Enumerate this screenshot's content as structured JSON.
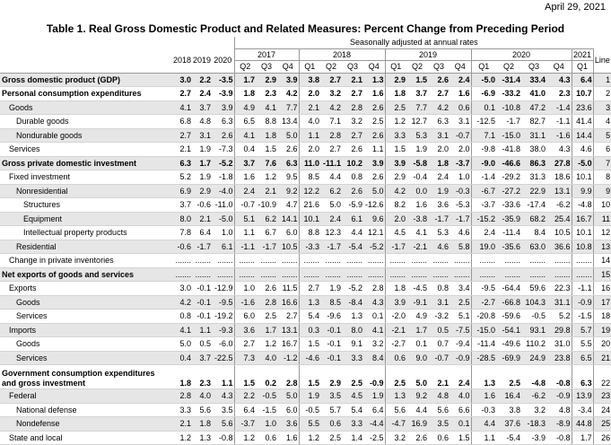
{
  "date": "April 29, 2021",
  "title": "Table 1. Real Gross Domestic Product and Related Measures: Percent Change from Preceding Period",
  "header": {
    "note": "Seasonally adjusted at annual rates",
    "annual_years": [
      "2018",
      "2019",
      "2020"
    ],
    "quarter_groups": [
      {
        "year": "2017",
        "quarters": [
          "Q2",
          "Q3",
          "Q4"
        ]
      },
      {
        "year": "2018",
        "quarters": [
          "Q1",
          "Q2",
          "Q3",
          "Q4"
        ]
      },
      {
        "year": "2019",
        "quarters": [
          "Q1",
          "Q2",
          "Q3",
          "Q4"
        ]
      },
      {
        "year": "2020",
        "quarters": [
          "Q1",
          "Q2",
          "Q3",
          "Q4"
        ]
      },
      {
        "year": "2021",
        "quarters": [
          "Q1"
        ]
      }
    ],
    "line": "Line"
  },
  "rows": [
    {
      "label": "Gross domestic product (GDP)",
      "values": [
        "3.0",
        "2.2",
        "-3.5",
        "1.7",
        "2.9",
        "3.9",
        "3.8",
        "2.7",
        "2.1",
        "1.3",
        "2.9",
        "1.5",
        "2.6",
        "2.4",
        "-5.0",
        "-31.4",
        "33.4",
        "4.3",
        "6.4"
      ],
      "line": 1
    },
    {
      "label": "Personal consumption expenditures",
      "values": [
        "2.7",
        "2.4",
        "-3.9",
        "1.8",
        "2.3",
        "4.2",
        "2.0",
        "3.2",
        "2.7",
        "1.6",
        "1.8",
        "3.7",
        "2.7",
        "1.6",
        "-6.9",
        "-33.2",
        "41.0",
        "2.3",
        "10.7"
      ],
      "line": 2
    },
    {
      "label": "Goods",
      "values": [
        "4.1",
        "3.7",
        "3.9",
        "4.9",
        "4.1",
        "7.7",
        "2.1",
        "4.2",
        "2.8",
        "2.6",
        "2.5",
        "7.7",
        "4.2",
        "0.6",
        "0.1",
        "-10.8",
        "47.2",
        "-1.4",
        "23.6"
      ],
      "line": 3
    },
    {
      "label": "Durable goods",
      "values": [
        "6.8",
        "4.8",
        "6.3",
        "6.5",
        "8.8",
        "13.4",
        "4.0",
        "7.1",
        "3.2",
        "2.5",
        "1.2",
        "12.7",
        "6.3",
        "3.1",
        "-12.5",
        "-1.7",
        "82.7",
        "-1.1",
        "41.4"
      ],
      "line": 4
    },
    {
      "label": "Nondurable goods",
      "values": [
        "2.7",
        "3.1",
        "2.6",
        "4.1",
        "1.8",
        "5.0",
        "1.1",
        "2.8",
        "2.7",
        "2.6",
        "3.3",
        "5.3",
        "3.1",
        "-0.7",
        "7.1",
        "-15.0",
        "31.1",
        "-1.6",
        "14.4"
      ],
      "line": 5
    },
    {
      "label": "Services",
      "values": [
        "2.1",
        "1.9",
        "-7.3",
        "0.4",
        "1.5",
        "2.6",
        "2.0",
        "2.7",
        "2.6",
        "1.1",
        "1.5",
        "1.9",
        "2.0",
        "2.0",
        "-9.8",
        "-41.8",
        "38.0",
        "4.3",
        "4.6"
      ],
      "line": 6
    },
    {
      "label": "Gross private domestic investment",
      "values": [
        "6.3",
        "1.7",
        "-5.2",
        "3.7",
        "7.6",
        "6.3",
        "11.0",
        "-11.1",
        "10.2",
        "3.9",
        "3.9",
        "-5.8",
        "1.8",
        "-3.7",
        "-9.0",
        "-46.6",
        "86.3",
        "27.8",
        "-5.0"
      ],
      "line": 7
    },
    {
      "label": "Fixed investment",
      "values": [
        "5.2",
        "1.9",
        "-1.8",
        "1.6",
        "1.2",
        "9.5",
        "8.5",
        "4.4",
        "0.8",
        "2.6",
        "2.9",
        "-0.4",
        "2.4",
        "1.0",
        "-1.4",
        "-29.2",
        "31.3",
        "18.6",
        "10.1"
      ],
      "line": 8
    },
    {
      "label": "Nonresidential",
      "values": [
        "6.9",
        "2.9",
        "-4.0",
        "2.4",
        "2.1",
        "9.2",
        "12.2",
        "6.2",
        "2.6",
        "5.0",
        "4.2",
        "0.0",
        "1.9",
        "-0.3",
        "-6.7",
        "-27.2",
        "22.9",
        "13.1",
        "9.9"
      ],
      "line": 9
    },
    {
      "label": "Structures",
      "values": [
        "3.7",
        "-0.6",
        "-11.0",
        "-0.7",
        "-10.9",
        "4.7",
        "21.6",
        "5.0",
        "-5.9",
        "-12.6",
        "8.2",
        "1.6",
        "3.6",
        "-5.3",
        "-3.7",
        "-33.6",
        "-17.4",
        "-6.2",
        "-4.8"
      ],
      "line": 10
    },
    {
      "label": "Equipment",
      "values": [
        "8.0",
        "2.1",
        "-5.0",
        "5.1",
        "6.2",
        "14.1",
        "10.1",
        "2.4",
        "6.1",
        "9.6",
        "2.0",
        "-3.8",
        "-1.7",
        "-1.7",
        "-15.2",
        "-35.9",
        "68.2",
        "25.4",
        "16.7"
      ],
      "line": 11
    },
    {
      "label": "Intellectual property products",
      "values": [
        "7.8",
        "6.4",
        "1.0",
        "1.1",
        "6.7",
        "6.0",
        "8.8",
        "12.3",
        "4.4",
        "12.1",
        "4.5",
        "4.1",
        "5.3",
        "4.6",
        "2.4",
        "-11.4",
        "8.4",
        "10.5",
        "10.1"
      ],
      "line": 12
    },
    {
      "label": "Residential",
      "values": [
        "-0.6",
        "-1.7",
        "6.1",
        "-1.1",
        "-1.7",
        "10.5",
        "-3.3",
        "-1.7",
        "-5.4",
        "-5.2",
        "-1.7",
        "-2.1",
        "4.6",
        "5.8",
        "19.0",
        "-35.6",
        "63.0",
        "36.6",
        "10.8"
      ],
      "line": 13
    },
    {
      "label": "Change in private inventories",
      "values": [
        ".......",
        ".......",
        ".......",
        ".......",
        ".......",
        ".......",
        ".......",
        ".......",
        ".......",
        ".......",
        ".......",
        ".......",
        ".......",
        ".......",
        ".......",
        ".......",
        ".......",
        ".......",
        "......."
      ],
      "line": 14
    },
    {
      "label": "Net exports of goods and services",
      "values": [
        ".......",
        ".......",
        ".......",
        ".......",
        ".......",
        ".......",
        ".......",
        ".......",
        ".......",
        ".......",
        ".......",
        ".......",
        ".......",
        ".......",
        ".......",
        ".......",
        ".......",
        ".......",
        "......."
      ],
      "line": 15
    },
    {
      "label": "Exports",
      "values": [
        "3.0",
        "-0.1",
        "-12.9",
        "1.0",
        "2.6",
        "11.5",
        "2.7",
        "1.9",
        "-5.2",
        "2.8",
        "1.8",
        "-4.5",
        "0.8",
        "3.4",
        "-9.5",
        "-64.4",
        "59.6",
        "22.3",
        "-1.1"
      ],
      "line": 16
    },
    {
      "label": "Goods",
      "values": [
        "4.2",
        "-0.1",
        "-9.5",
        "-1.6",
        "2.8",
        "16.6",
        "1.3",
        "8.5",
        "-8.4",
        "4.3",
        "3.9",
        "-9.1",
        "3.1",
        "2.5",
        "-2.7",
        "-66.8",
        "104.3",
        "31.1",
        "-0.9"
      ],
      "line": 17
    },
    {
      "label": "Services",
      "values": [
        "0.8",
        "-0.1",
        "-19.2",
        "6.0",
        "2.5",
        "2.7",
        "5.4",
        "-9.6",
        "1.3",
        "0.1",
        "-2.0",
        "4.9",
        "-3.2",
        "5.1",
        "-20.8",
        "-59.6",
        "-0.5",
        "5.2",
        "-1.5"
      ],
      "line": 18
    },
    {
      "label": "Imports",
      "values": [
        "4.1",
        "1.1",
        "-9.3",
        "3.6",
        "1.7",
        "13.1",
        "0.3",
        "-0.1",
        "8.0",
        "4.1",
        "-2.1",
        "1.7",
        "0.5",
        "-7.5",
        "-15.0",
        "-54.1",
        "93.1",
        "29.8",
        "5.7"
      ],
      "line": 19
    },
    {
      "label": "Goods",
      "values": [
        "5.0",
        "0.5",
        "-6.0",
        "2.7",
        "1.2",
        "16.7",
        "1.5",
        "-0.1",
        "9.1",
        "3.2",
        "-2.7",
        "0.1",
        "0.7",
        "-9.4",
        "-11.4",
        "-49.6",
        "110.2",
        "31.0",
        "5.5"
      ],
      "line": 20
    },
    {
      "label": "Services",
      "values": [
        "0.4",
        "3.7",
        "-22.5",
        "7.3",
        "4.0",
        "-1.2",
        "-4.6",
        "-0.1",
        "3.3",
        "8.4",
        "0.6",
        "9.0",
        "-0.7",
        "-0.9",
        "-28.5",
        "-69.9",
        "24.9",
        "23.8",
        "6.5"
      ],
      "line": 21
    },
    {
      "label": "Government consumption expenditures and gross investment",
      "values": [
        "1.8",
        "2.3",
        "1.1",
        "1.5",
        "0.2",
        "2.8",
        "1.5",
        "2.9",
        "2.5",
        "-0.9",
        "2.5",
        "5.0",
        "2.1",
        "2.4",
        "1.3",
        "2.5",
        "-4.8",
        "-0.8",
        "6.3"
      ],
      "line": 22
    },
    {
      "label": "Federal",
      "values": [
        "2.8",
        "4.0",
        "4.3",
        "2.2",
        "-0.5",
        "5.0",
        "1.9",
        "3.5",
        "4.5",
        "1.9",
        "1.3",
        "9.2",
        "4.8",
        "4.0",
        "1.6",
        "16.4",
        "-6.2",
        "-0.9",
        "13.9"
      ],
      "line": 23
    },
    {
      "label": "National defense",
      "values": [
        "3.3",
        "5.6",
        "3.5",
        "6.4",
        "-1.5",
        "6.0",
        "-0.5",
        "5.7",
        "5.4",
        "6.4",
        "5.6",
        "4.4",
        "5.6",
        "6.6",
        "-0.3",
        "3.8",
        "3.2",
        "4.8",
        "-3.4"
      ],
      "line": 24
    },
    {
      "label": "Nondefense",
      "values": [
        "2.1",
        "1.8",
        "5.6",
        "-3.7",
        "1.0",
        "3.6",
        "5.5",
        "0.6",
        "3.3",
        "-4.4",
        "-4.7",
        "16.9",
        "3.5",
        "0.1",
        "4.4",
        "37.6",
        "-18.3",
        "-8.9",
        "44.8"
      ],
      "line": 25
    },
    {
      "label": "State and local",
      "values": [
        "1.2",
        "1.3",
        "-0.8",
        "1.2",
        "0.6",
        "1.6",
        "1.2",
        "2.5",
        "1.4",
        "-2.5",
        "3.2",
        "2.6",
        "0.6",
        "1.5",
        "1.1",
        "-5.4",
        "-3.9",
        "-0.8",
        "1.7"
      ],
      "line": 26
    }
  ]
}
